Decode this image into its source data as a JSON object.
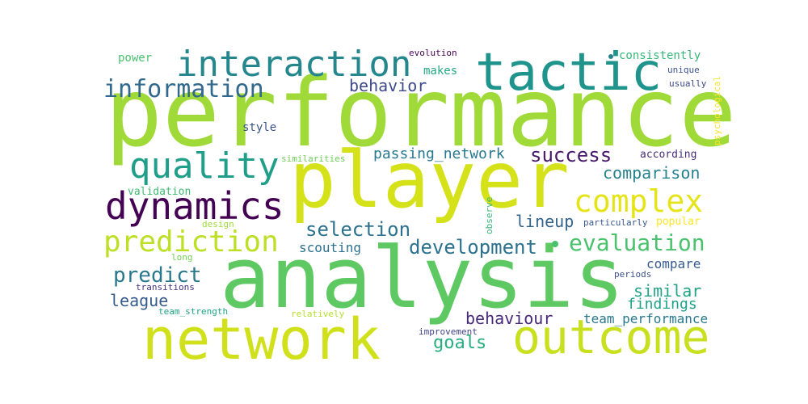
{
  "wordcloud": {
    "words": [
      {
        "text": "performance",
        "color": "#a0da39"
      },
      {
        "text": "player",
        "color": "#d5e21a"
      },
      {
        "text": "analysis",
        "color": "#5ec962"
      },
      {
        "text": "network",
        "color": "#d0e11c"
      },
      {
        "text": "tactic",
        "color": "#1f948c"
      },
      {
        "text": "outcome",
        "color": "#c8e020"
      },
      {
        "text": "interaction",
        "color": "#24878e"
      },
      {
        "text": "dynamics",
        "color": "#440154"
      },
      {
        "text": "quality",
        "color": "#1f9e89"
      },
      {
        "text": "prediction",
        "color": "#bddf26"
      },
      {
        "text": "complex",
        "color": "#e5e419"
      },
      {
        "text": "information",
        "color": "#31688e"
      },
      {
        "text": "evaluation",
        "color": "#4ac16d"
      },
      {
        "text": "success",
        "color": "#48186a"
      },
      {
        "text": "selection",
        "color": "#2c728e"
      },
      {
        "text": "development",
        "color": "#2c728e"
      },
      {
        "text": "predict",
        "color": "#2a788e"
      },
      {
        "text": "passing_network",
        "color": "#2a788e"
      },
      {
        "text": "behavior",
        "color": "#3e4989"
      },
      {
        "text": "comparison",
        "color": "#26828e"
      },
      {
        "text": "lineup",
        "color": "#33638d"
      },
      {
        "text": "goals",
        "color": "#27ad81"
      },
      {
        "text": "league",
        "color": "#375b8d"
      },
      {
        "text": "behaviour",
        "color": "#482878"
      },
      {
        "text": "similar",
        "color": "#20a486"
      },
      {
        "text": "findings",
        "color": "#1fa188"
      },
      {
        "text": "compare",
        "color": "#375b8d"
      },
      {
        "text": "team_performance",
        "color": "#29798e"
      },
      {
        "text": "scouting",
        "color": "#2c728e"
      },
      {
        "text": "style",
        "color": "#3b528b"
      },
      {
        "text": "makes",
        "color": "#22a884"
      },
      {
        "text": "power",
        "color": "#4ac16d"
      },
      {
        "text": "consistently",
        "color": "#35b779"
      },
      {
        "text": "according",
        "color": "#472d7b"
      },
      {
        "text": "popular",
        "color": "#fde725"
      },
      {
        "text": "validation",
        "color": "#3fbc73"
      },
      {
        "text": "evolution",
        "color": "#440154"
      },
      {
        "text": "unique",
        "color": "#3b528b"
      },
      {
        "text": "usually",
        "color": "#3e4989"
      },
      {
        "text": "similarities",
        "color": "#6ece58"
      },
      {
        "text": "particularly",
        "color": "#38598c"
      },
      {
        "text": "design",
        "color": "#9fda3a"
      },
      {
        "text": "long",
        "color": "#73d056"
      },
      {
        "text": "transitions",
        "color": "#46337e"
      },
      {
        "text": "periods",
        "color": "#3b528b"
      },
      {
        "text": "team_strength",
        "color": "#20a386"
      },
      {
        "text": "relatively",
        "color": "#b5de2b"
      },
      {
        "text": "improvement",
        "color": "#414487"
      },
      {
        "text": "psychological",
        "color": "#fde725"
      },
      {
        "text": "observe",
        "color": "#35b779"
      }
    ]
  }
}
